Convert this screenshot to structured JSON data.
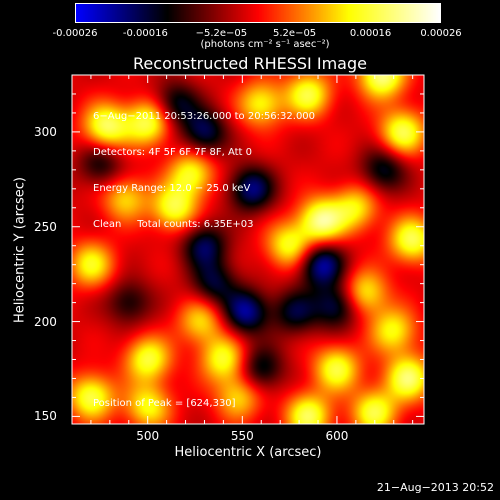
{
  "colorbar": {
    "tick_labels": [
      "-0.00026",
      "-0.00016",
      "−5.2e−05",
      "5.2e−05",
      "0.00016",
      "0.00026"
    ],
    "tick_values": [
      -0.00026,
      -0.00016,
      -5.2e-05,
      5.2e-05,
      0.00016,
      0.00026
    ],
    "range": [
      -0.00026,
      0.00026
    ],
    "units": "(photons cm⁻² s⁻¹ asec⁻²)",
    "colors": [
      "#0000ff",
      "#000000",
      "#ff0000",
      "#ffff00",
      "#ffffff"
    ]
  },
  "chart_data": {
    "type": "heatmap",
    "title": "Reconstructed RHESSI Image",
    "xlabel": "Heliocentric X (arcsec)",
    "ylabel": "Heliocentric Y (arcsec)",
    "xlim": [
      460,
      646
    ],
    "ylim": [
      146,
      330
    ],
    "xticks": [
      500,
      550,
      600
    ],
    "yticks": [
      150,
      200,
      250,
      300
    ],
    "annotations": {
      "time": "6−Aug−2011 20:53:26.000 to 20:56:32.000",
      "detectors": "Detectors: 4F 5F 6F 7F 8F, Att 0",
      "energy": "Energy Range: 12.0 − 25.0 keV",
      "counts": "Clean     Total counts: 6.35E+03",
      "peak": "Position of Peak = [624,330]"
    },
    "blobs": [
      {
        "x": 478,
        "y": 303,
        "v": 0.9
      },
      {
        "x": 500,
        "y": 305,
        "v": 0.85
      },
      {
        "x": 514,
        "y": 260,
        "v": 0.8
      },
      {
        "x": 523,
        "y": 278,
        "v": 0.75
      },
      {
        "x": 488,
        "y": 265,
        "v": 0.6
      },
      {
        "x": 470,
        "y": 230,
        "v": 0.7
      },
      {
        "x": 470,
        "y": 160,
        "v": 0.85
      },
      {
        "x": 500,
        "y": 180,
        "v": 0.8
      },
      {
        "x": 500,
        "y": 155,
        "v": 0.7
      },
      {
        "x": 540,
        "y": 180,
        "v": 0.75
      },
      {
        "x": 548,
        "y": 160,
        "v": 0.6
      },
      {
        "x": 560,
        "y": 315,
        "v": 0.7
      },
      {
        "x": 585,
        "y": 320,
        "v": 0.8
      },
      {
        "x": 592,
        "y": 253,
        "v": 1.0
      },
      {
        "x": 575,
        "y": 240,
        "v": 0.75
      },
      {
        "x": 610,
        "y": 260,
        "v": 0.65
      },
      {
        "x": 624,
        "y": 330,
        "v": 1.0
      },
      {
        "x": 635,
        "y": 300,
        "v": 0.85
      },
      {
        "x": 640,
        "y": 243,
        "v": 0.85
      },
      {
        "x": 615,
        "y": 215,
        "v": 0.7
      },
      {
        "x": 630,
        "y": 195,
        "v": 0.7
      },
      {
        "x": 638,
        "y": 170,
        "v": 0.9
      },
      {
        "x": 600,
        "y": 175,
        "v": 0.8
      },
      {
        "x": 585,
        "y": 150,
        "v": 0.85
      },
      {
        "x": 620,
        "y": 152,
        "v": 0.8
      },
      {
        "x": 528,
        "y": 200,
        "v": 0.6
      },
      {
        "x": 530,
        "y": 300,
        "v": -0.7
      },
      {
        "x": 515,
        "y": 315,
        "v": -0.6
      },
      {
        "x": 530,
        "y": 240,
        "v": -0.7
      },
      {
        "x": 555,
        "y": 270,
        "v": -0.8
      },
      {
        "x": 552,
        "y": 205,
        "v": -0.85
      },
      {
        "x": 578,
        "y": 205,
        "v": -0.6
      },
      {
        "x": 592,
        "y": 230,
        "v": -0.9
      },
      {
        "x": 600,
        "y": 208,
        "v": -0.7
      },
      {
        "x": 535,
        "y": 220,
        "v": -0.6
      },
      {
        "x": 475,
        "y": 283,
        "v": -0.5
      },
      {
        "x": 490,
        "y": 210,
        "v": -0.5
      },
      {
        "x": 625,
        "y": 280,
        "v": -0.6
      },
      {
        "x": 560,
        "y": 175,
        "v": -0.6
      }
    ]
  },
  "footer": {
    "date": "21−Aug−2013 20:52"
  }
}
